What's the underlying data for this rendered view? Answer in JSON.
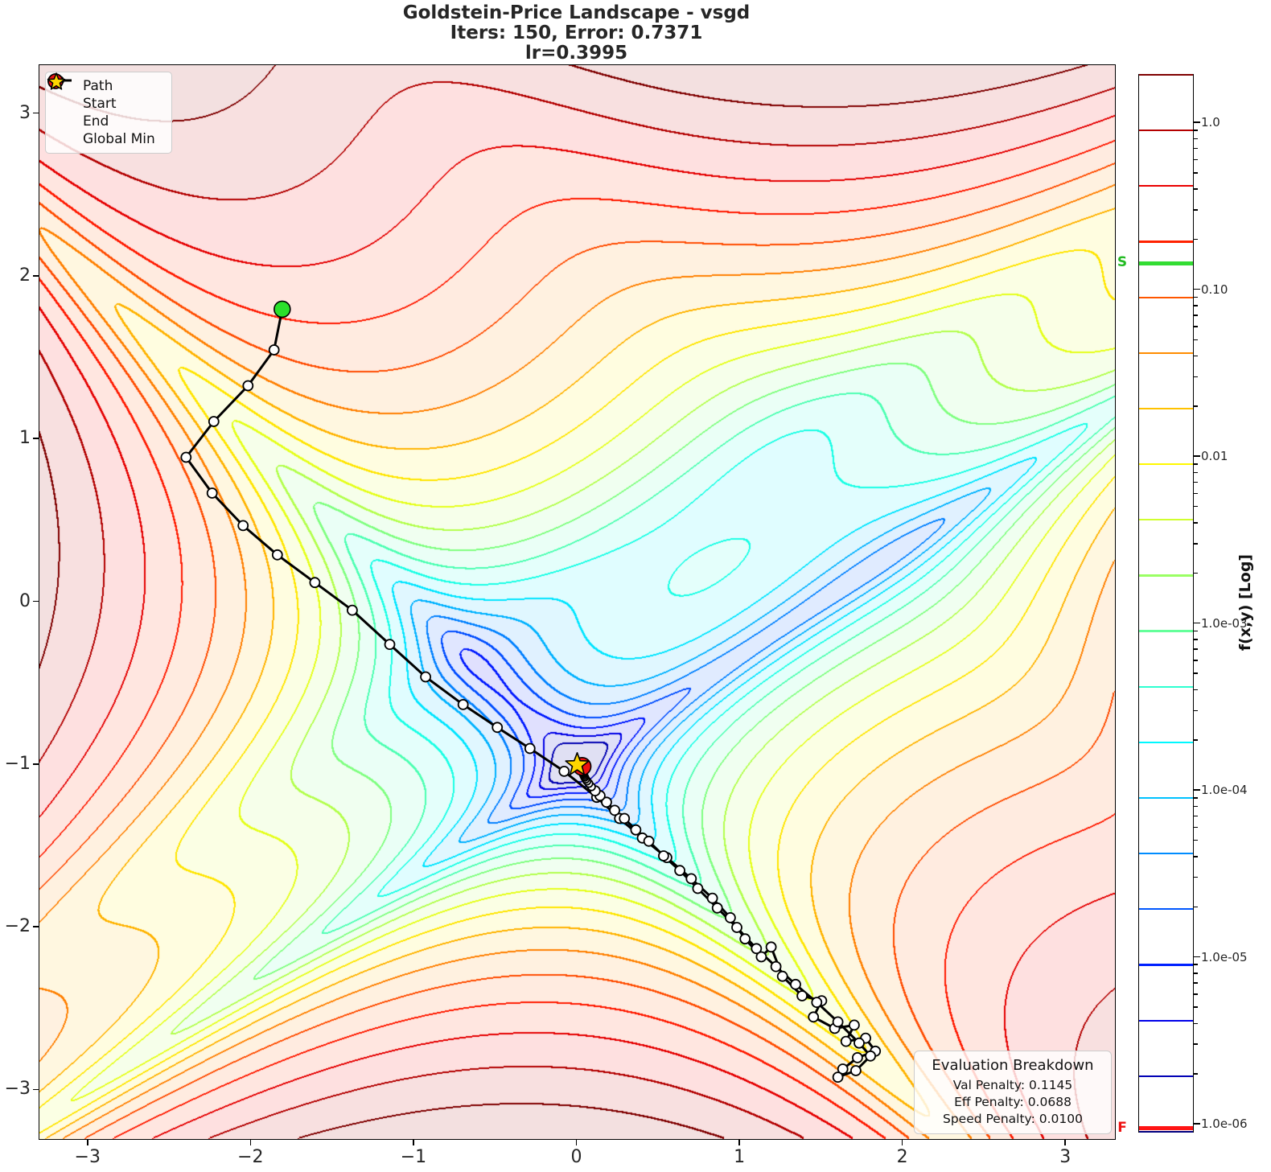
{
  "title": {
    "line1": "Goldstein-Price Landscape - vsgd",
    "line2": "Iters: 150, Error: 0.7371",
    "line3": "lr=0.3995"
  },
  "legend": {
    "items": [
      {
        "label": "Path",
        "type": "path-line"
      },
      {
        "label": "Start",
        "type": "start-marker"
      },
      {
        "label": "End",
        "type": "end-marker"
      },
      {
        "label": "Global Min",
        "type": "global-min-marker"
      }
    ]
  },
  "plot": {
    "xlim": [
      -3.3,
      3.3
    ],
    "ylim": [
      -3.3,
      3.3
    ],
    "x_tick_values": [
      -3,
      -2,
      -1,
      0,
      1,
      2,
      3
    ],
    "x_tick_labels": [
      "−3",
      "−2",
      "−1",
      "0",
      "1",
      "2",
      "3"
    ],
    "y_tick_values": [
      3,
      2,
      1,
      0,
      -1,
      -2,
      -3
    ],
    "y_tick_labels": [
      "3",
      "2",
      "1",
      "0",
      "−1",
      "−2",
      "−3"
    ]
  },
  "colorbar": {
    "axis_label": "f(x,y) [Log]",
    "log_top": 0.29,
    "decades": 6.333,
    "n_levels": 20,
    "ticks": [
      {
        "label": "1.0",
        "value": 1
      },
      {
        "label": "0.10",
        "value": 0.1
      },
      {
        "label": "0.01",
        "value": 0.01
      },
      {
        "label": "1.0e-03",
        "value": 0.001
      },
      {
        "label": "1.0e-04",
        "value": 0.0001
      },
      {
        "label": "1.0e-05",
        "value": 1e-05
      },
      {
        "label": "1.0e-06",
        "value": 1e-06
      }
    ],
    "start_marker": {
      "label": "S",
      "value": 0.145,
      "color": "#33dd33"
    },
    "final_marker": {
      "label": "F",
      "value": 9.5e-07,
      "color": "#ff1515"
    }
  },
  "eval_box": {
    "title": "Evaluation Breakdown",
    "rows": [
      "Val Penalty: 0.1145",
      "Eff Penalty: 0.0688",
      "Speed Penalty: 0.0100"
    ]
  },
  "chart_data": {
    "type": "contour-with-optimization-path",
    "function": "Goldstein-Price",
    "scale": "log",
    "optimizer": "vsgd",
    "iterations": 150,
    "error": 0.7371,
    "learning_rate": 0.3995,
    "val_penalty": 0.1145,
    "eff_penalty": 0.0688,
    "speed_penalty": 0.01,
    "xlim": [
      -3.3,
      3.3
    ],
    "ylim": [
      -3.3,
      3.3
    ],
    "colormap": "jet",
    "fill_alpha": 0.12,
    "start_point": [
      -1.81,
      1.8
    ],
    "end_point": [
      0.03,
      -1.01
    ],
    "global_min": [
      0,
      -1
    ],
    "colors": {
      "start": "#2be02b",
      "end": "#ee1111",
      "star": "#ffd700",
      "path": "#000000"
    },
    "path": [
      [
        -1.81,
        1.8
      ],
      [
        -1.86,
        1.55
      ],
      [
        -2.02,
        1.33
      ],
      [
        -2.23,
        1.11
      ],
      [
        -2.4,
        0.89
      ],
      [
        -2.24,
        0.67
      ],
      [
        -2.05,
        0.47
      ],
      [
        -1.84,
        0.29
      ],
      [
        -1.61,
        0.12
      ],
      [
        -1.38,
        -0.05
      ],
      [
        -1.15,
        -0.26
      ],
      [
        -0.93,
        -0.46
      ],
      [
        -0.7,
        -0.63
      ],
      [
        -0.49,
        -0.77
      ],
      [
        -0.29,
        -0.9
      ],
      [
        -0.08,
        -1.04
      ],
      [
        0.12,
        -1.2
      ],
      [
        0.26,
        -1.33
      ],
      [
        0.4,
        -1.45
      ],
      [
        0.55,
        -1.57
      ],
      [
        0.7,
        -1.7
      ],
      [
        0.83,
        -1.82
      ],
      [
        0.94,
        -1.94
      ],
      [
        1.03,
        -2.07
      ],
      [
        1.13,
        -2.18
      ],
      [
        1.19,
        -2.12
      ],
      [
        1.26,
        -2.3
      ],
      [
        1.38,
        -2.42
      ],
      [
        1.5,
        -2.45
      ],
      [
        1.45,
        -2.55
      ],
      [
        1.58,
        -2.62
      ],
      [
        1.7,
        -2.6
      ],
      [
        1.65,
        -2.7
      ],
      [
        1.77,
        -2.68
      ],
      [
        1.83,
        -2.76
      ],
      [
        1.72,
        -2.8
      ],
      [
        1.63,
        -2.87
      ],
      [
        1.6,
        -2.92
      ],
      [
        1.71,
        -2.88
      ],
      [
        1.8,
        -2.79
      ],
      [
        1.73,
        -2.71
      ],
      [
        1.6,
        -2.58
      ],
      [
        1.47,
        -2.46
      ],
      [
        1.34,
        -2.35
      ],
      [
        1.22,
        -2.24
      ],
      [
        1.1,
        -2.13
      ],
      [
        0.98,
        -2.0
      ],
      [
        0.86,
        -1.88
      ],
      [
        0.74,
        -1.76
      ],
      [
        0.63,
        -1.65
      ],
      [
        0.53,
        -1.56
      ],
      [
        0.44,
        -1.47
      ],
      [
        0.36,
        -1.4
      ],
      [
        0.29,
        -1.33
      ],
      [
        0.23,
        -1.28
      ],
      [
        0.18,
        -1.23
      ],
      [
        0.14,
        -1.19
      ],
      [
        0.11,
        -1.16
      ],
      [
        0.088,
        -1.135
      ],
      [
        0.072,
        -1.115
      ],
      [
        0.06,
        -1.1
      ],
      [
        0.052,
        -1.088
      ],
      [
        0.046,
        -1.077
      ],
      [
        0.042,
        -1.068
      ],
      [
        0.038,
        -1.059
      ],
      [
        0.036,
        -1.051
      ],
      [
        0.034,
        -1.044
      ],
      [
        0.033,
        -1.037
      ],
      [
        0.032,
        -1.03
      ],
      [
        0.031,
        -1.024
      ],
      [
        0.03,
        -1.018
      ],
      [
        0.03,
        -1.01
      ]
    ]
  }
}
